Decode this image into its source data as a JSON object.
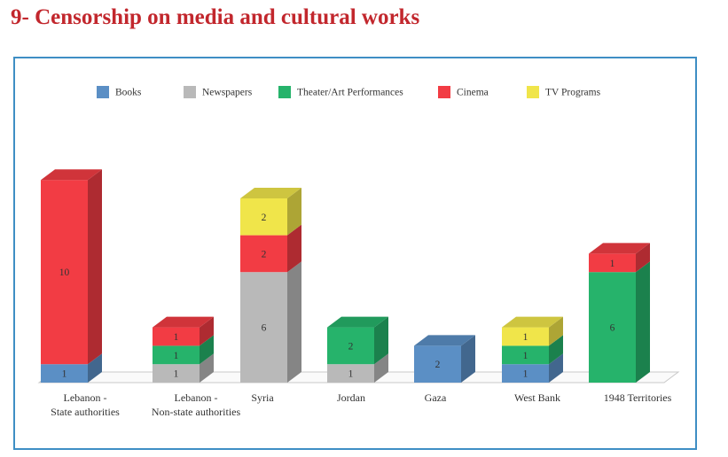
{
  "page_title": "9- Censorship on media and cultural works",
  "chart_data": {
    "type": "bar",
    "stacked": true,
    "three_d": true,
    "legend_position": "top",
    "grid": false,
    "categories": [
      "Lebanon - State authorities",
      "Lebanon - Non-state authorities",
      "Syria",
      "Jordan",
      "Gaza",
      "West Bank",
      "1948 Territories"
    ],
    "category_lines": [
      [
        "Lebanon -",
        "State authorities"
      ],
      [
        "Lebanon -",
        "Non-state authorities"
      ],
      [
        "Syria"
      ],
      [
        "Jordan"
      ],
      [
        "Gaza"
      ],
      [
        "West Bank"
      ],
      [
        "1948 Territories"
      ]
    ],
    "series": [
      {
        "name": "Books",
        "color": "#5b8fc5",
        "values": [
          1,
          0,
          0,
          0,
          2,
          1,
          0
        ]
      },
      {
        "name": "Newspapers",
        "color": "#b9b9b9",
        "values": [
          0,
          1,
          6,
          1,
          0,
          0,
          0
        ]
      },
      {
        "name": "Theater/Art Performances",
        "color": "#26b36b",
        "values": [
          0,
          1,
          0,
          2,
          0,
          1,
          6
        ]
      },
      {
        "name": "Cinema",
        "color": "#f23c44",
        "values": [
          10,
          1,
          2,
          0,
          0,
          0,
          1
        ]
      },
      {
        "name": "TV Programs",
        "color": "#f0e54a",
        "values": [
          0,
          0,
          2,
          0,
          0,
          1,
          0
        ]
      }
    ]
  }
}
